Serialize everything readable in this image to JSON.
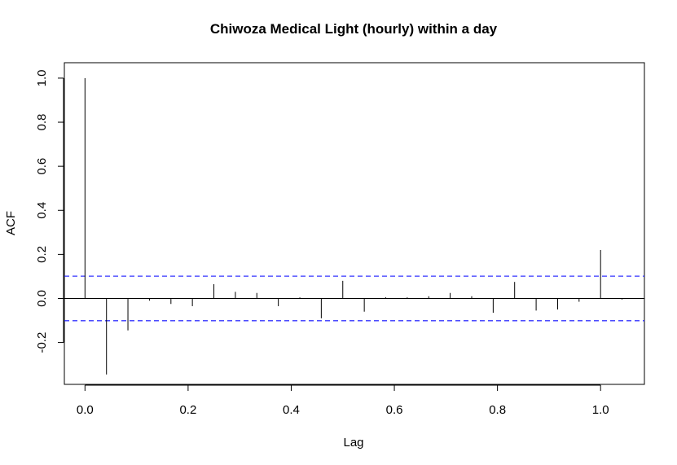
{
  "chart_data": {
    "type": "bar",
    "title": "Chiwoza Medical Light (hourly) within a day",
    "xlabel": "Lag",
    "ylabel": "ACF",
    "xlim": [
      -0.04,
      1.085
    ],
    "ylim": [
      -0.39,
      1.07
    ],
    "xticks": [
      "0.0",
      "0.2",
      "0.4",
      "0.6",
      "0.8",
      "1.0"
    ],
    "yticks": [
      "-0.2",
      "0.0",
      "0.2",
      "0.4",
      "0.6",
      "0.8",
      "1.0"
    ],
    "confidence_band": 0.101,
    "band_color": "#3333ff",
    "series": [
      {
        "lags": [
          0.0,
          0.0417,
          0.0833,
          0.125,
          0.1667,
          0.2083,
          0.25,
          0.2917,
          0.3333,
          0.375,
          0.4167,
          0.4583,
          0.5,
          0.5417,
          0.5833,
          0.625,
          0.6667,
          0.7083,
          0.75,
          0.7917,
          0.8333,
          0.875,
          0.9167,
          0.9583,
          1.0,
          1.0417
        ],
        "values": [
          1.0,
          -0.345,
          -0.145,
          -0.01,
          -0.025,
          -0.035,
          0.065,
          0.03,
          0.025,
          -0.035,
          0.005,
          -0.09,
          0.08,
          -0.06,
          0.005,
          0.005,
          0.01,
          0.025,
          0.01,
          -0.065,
          0.075,
          -0.055,
          -0.05,
          -0.015,
          0.22,
          -0.005
        ]
      }
    ]
  }
}
